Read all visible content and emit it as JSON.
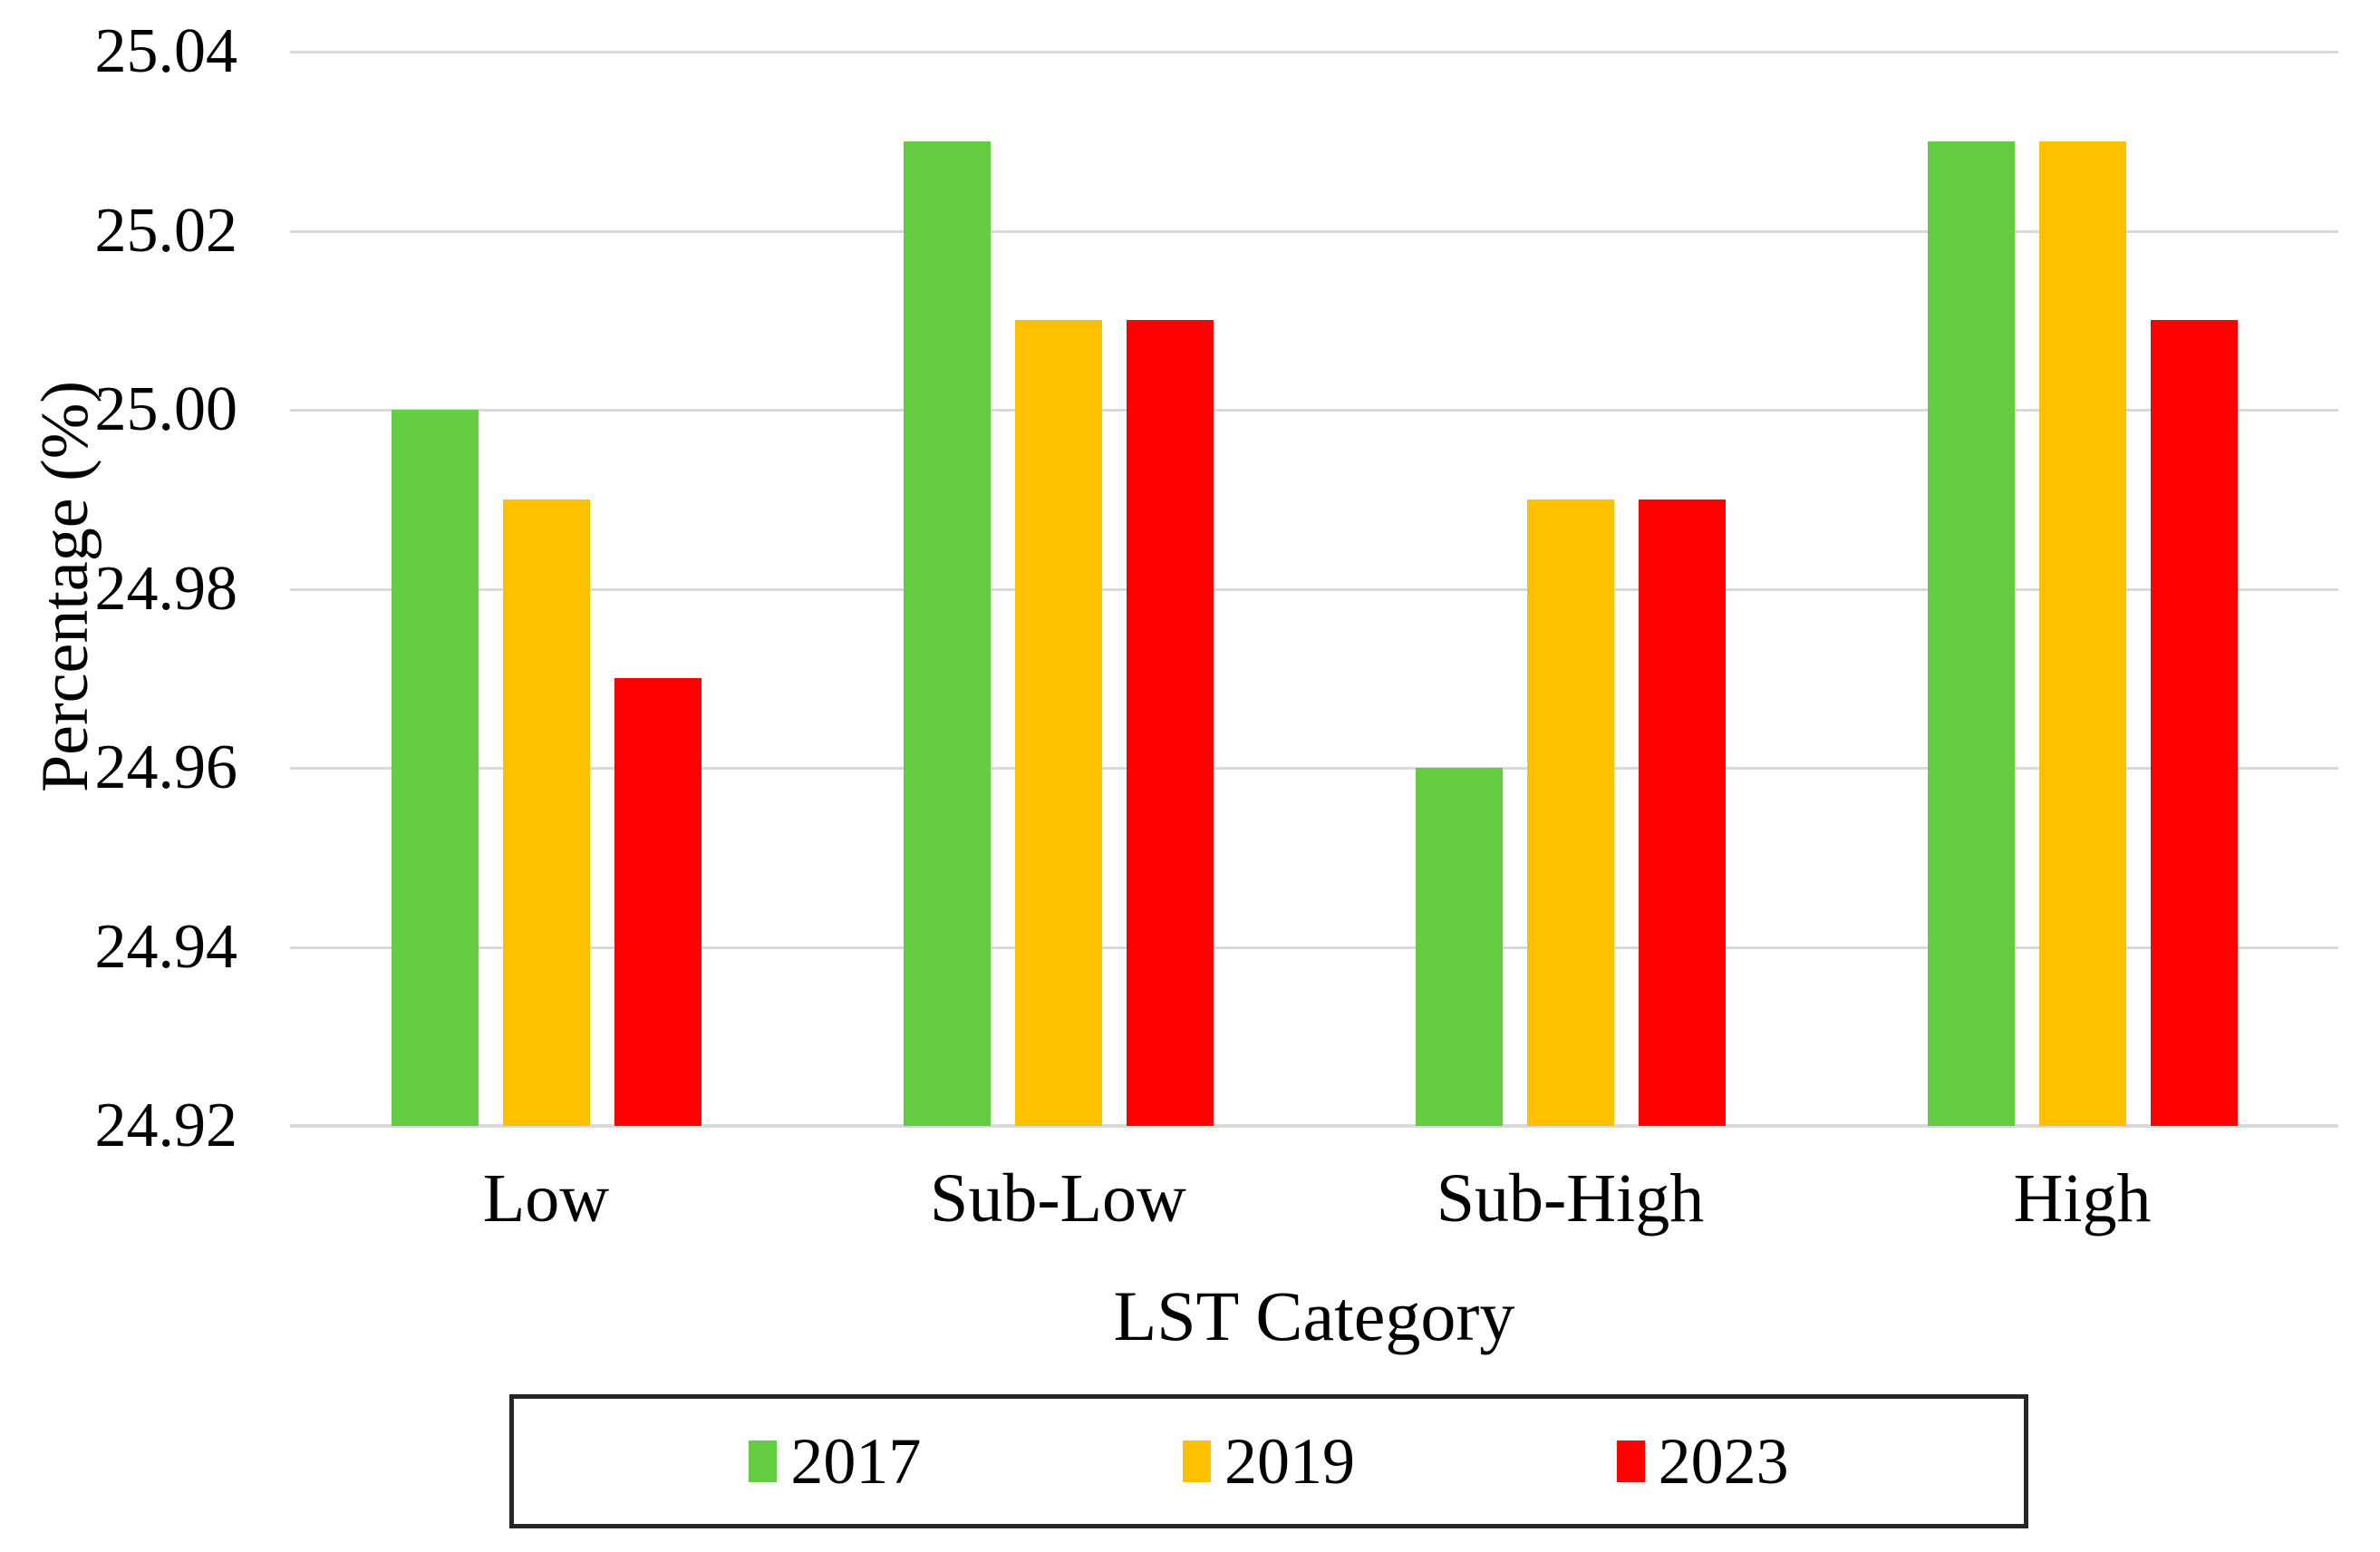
{
  "chart_data": {
    "type": "bar",
    "title": "",
    "categories": [
      "Low",
      "Sub-Low",
      "Sub-High",
      "High"
    ],
    "series": [
      {
        "name": "2017",
        "color": "#63CC40",
        "values": [
          25.0,
          25.03,
          24.96,
          25.03
        ]
      },
      {
        "name": "2019",
        "color": "#FFC000",
        "values": [
          24.99,
          25.01,
          24.99,
          25.03
        ]
      },
      {
        "name": "2023",
        "color": "#FF0000",
        "values": [
          24.97,
          25.01,
          24.99,
          25.01
        ]
      }
    ],
    "xlabel": "LST Category",
    "ylabel": "Percentage (%)",
    "ylim": [
      24.92,
      25.04
    ],
    "ytick_step": 0.02,
    "ytick_labels": [
      "24.92",
      "24.94",
      "24.96",
      "24.98",
      "25.00",
      "25.02",
      "25.04"
    ],
    "grid": true,
    "legend_position": "bottom"
  },
  "colors": {
    "gridline": "#D9D9D9",
    "text": "#000000",
    "legend_border": "#262626",
    "background": "#FFFFFF"
  }
}
